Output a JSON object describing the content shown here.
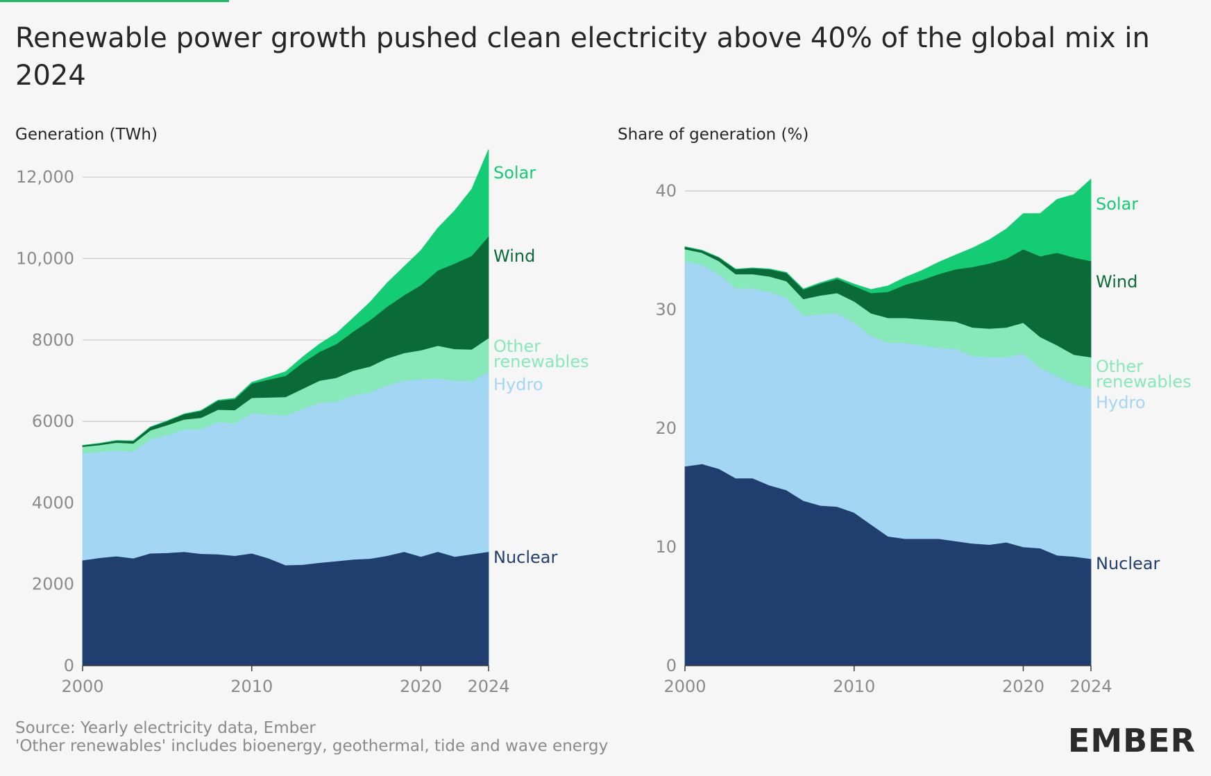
{
  "title": "Renewable power growth pushed clean electricity above 40% of the global mix in 2024",
  "footer": {
    "source": "Source: Yearly electricity data, Ember",
    "note": "'Other renewables' includes bioenergy, geothermal, tide and wave energy"
  },
  "logo": "EMBER",
  "colors": {
    "background": "#f6f6f6",
    "nuclear": "#213f6e",
    "hydro": "#a3d6f2",
    "other_renewables": "#87e8b9",
    "wind": "#0b6b38",
    "solar": "#14cc74",
    "accent_bar": "#1fb865"
  },
  "chart_data": [
    {
      "type": "area",
      "stacked": true,
      "ylabel": "Generation (TWh)",
      "x": [
        2000,
        2001,
        2002,
        2003,
        2004,
        2005,
        2006,
        2007,
        2008,
        2009,
        2010,
        2011,
        2012,
        2013,
        2014,
        2015,
        2016,
        2017,
        2018,
        2019,
        2020,
        2021,
        2022,
        2023,
        2024
      ],
      "x_ticks": [
        "2000",
        "2010",
        "2020",
        "2024"
      ],
      "y_ticks": [
        "0",
        "2000",
        "4000",
        "6000",
        "8000",
        "10,000",
        "12,000"
      ],
      "ylim": [
        0,
        12600
      ],
      "grid": true,
      "legend_placement": "inline-right",
      "series": [
        {
          "name": "Nuclear",
          "color_key": "nuclear",
          "values": [
            2590,
            2650,
            2690,
            2640,
            2760,
            2770,
            2800,
            2750,
            2740,
            2700,
            2760,
            2640,
            2470,
            2480,
            2530,
            2570,
            2610,
            2630,
            2700,
            2800,
            2680,
            2800,
            2680,
            2740,
            2800
          ]
        },
        {
          "name": "Hydro",
          "color_key": "hydro",
          "values": [
            2630,
            2600,
            2600,
            2620,
            2800,
            2900,
            3000,
            3060,
            3250,
            3250,
            3440,
            3530,
            3680,
            3830,
            3930,
            3920,
            4030,
            4080,
            4190,
            4200,
            4360,
            4260,
            4320,
            4250,
            4420
          ]
        },
        {
          "name": "Other renewables",
          "color_key": "other_renewables",
          "values": [
            160,
            170,
            190,
            200,
            220,
            240,
            250,
            280,
            300,
            330,
            380,
            420,
            450,
            490,
            540,
            580,
            610,
            640,
            660,
            680,
            710,
            800,
            780,
            780,
            830
          ]
        },
        {
          "name": "Wind",
          "color_key": "wind",
          "values": [
            30,
            40,
            50,
            60,
            80,
            100,
            130,
            170,
            220,
            270,
            350,
            440,
            520,
            640,
            710,
            830,
            960,
            1140,
            1270,
            1420,
            1600,
            1850,
            2100,
            2300,
            2500
          ]
        },
        {
          "name": "Solar",
          "color_key": "solar",
          "values": [
            1,
            2,
            2,
            3,
            3,
            4,
            6,
            8,
            12,
            20,
            32,
            60,
            100,
            140,
            190,
            260,
            330,
            440,
            580,
            700,
            850,
            1040,
            1300,
            1630,
            2130
          ]
        }
      ]
    },
    {
      "type": "area",
      "stacked": true,
      "ylabel": "Share of generation (%)",
      "x": [
        2000,
        2001,
        2002,
        2003,
        2004,
        2005,
        2006,
        2007,
        2008,
        2009,
        2010,
        2011,
        2012,
        2013,
        2014,
        2015,
        2016,
        2017,
        2018,
        2019,
        2020,
        2021,
        2022,
        2023,
        2024
      ],
      "x_ticks": [
        "2000",
        "2010",
        "2020",
        "2024"
      ],
      "y_ticks": [
        "0",
        "10",
        "20",
        "30",
        "40"
      ],
      "ylim": [
        0,
        41
      ],
      "grid": true,
      "legend_placement": "inline-right",
      "series": [
        {
          "name": "Nuclear",
          "color_key": "nuclear",
          "values": [
            16.8,
            17.0,
            16.6,
            15.8,
            15.8,
            15.2,
            14.8,
            13.9,
            13.5,
            13.4,
            12.9,
            11.9,
            10.9,
            10.7,
            10.7,
            10.7,
            10.5,
            10.3,
            10.2,
            10.4,
            10.0,
            9.9,
            9.3,
            9.2,
            9.0
          ]
        },
        {
          "name": "Hydro",
          "color_key": "hydro",
          "values": [
            17.3,
            16.8,
            16.4,
            16.0,
            16.0,
            16.3,
            16.2,
            15.6,
            16.1,
            16.3,
            16.0,
            15.9,
            16.3,
            16.5,
            16.3,
            16.1,
            16.2,
            15.8,
            15.8,
            15.6,
            16.3,
            15.2,
            15.1,
            14.5,
            14.4
          ]
        },
        {
          "name": "Other renewables",
          "color_key": "other_renewables",
          "values": [
            1.0,
            1.0,
            1.1,
            1.2,
            1.2,
            1.3,
            1.4,
            1.4,
            1.6,
            1.7,
            1.8,
            1.9,
            2.1,
            2.1,
            2.2,
            2.3,
            2.3,
            2.4,
            2.4,
            2.5,
            2.6,
            2.6,
            2.6,
            2.5,
            2.6
          ]
        },
        {
          "name": "Wind",
          "color_key": "wind",
          "values": [
            0.2,
            0.2,
            0.3,
            0.4,
            0.5,
            0.6,
            0.7,
            0.8,
            1.0,
            1.2,
            1.3,
            1.7,
            2.2,
            2.8,
            3.3,
            3.9,
            4.4,
            5.1,
            5.5,
            5.8,
            6.2,
            6.8,
            7.8,
            8.2,
            8.1
          ]
        },
        {
          "name": "Solar",
          "color_key": "solar",
          "values": [
            0.01,
            0.01,
            0.01,
            0.02,
            0.02,
            0.03,
            0.04,
            0.05,
            0.07,
            0.1,
            0.15,
            0.3,
            0.5,
            0.6,
            0.8,
            1.0,
            1.2,
            1.6,
            2.0,
            2.5,
            3.0,
            3.6,
            4.5,
            5.3,
            6.9
          ]
        }
      ]
    }
  ]
}
